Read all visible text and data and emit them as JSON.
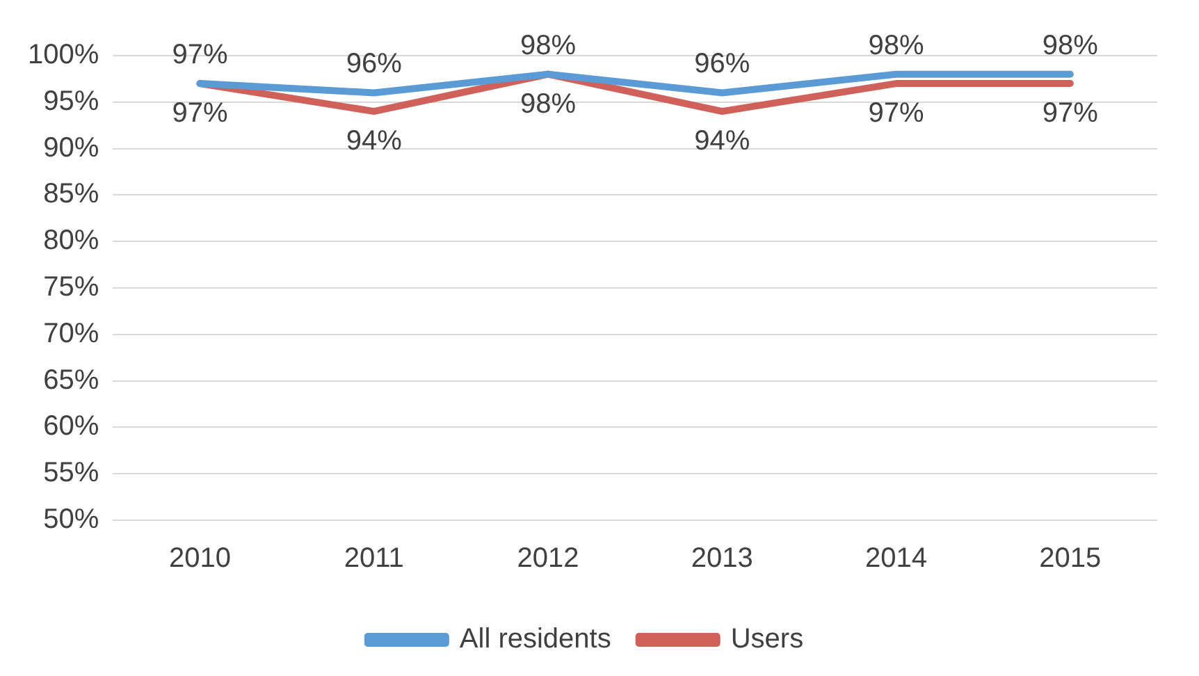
{
  "chart_data": {
    "type": "line",
    "categories": [
      "2010",
      "2011",
      "2012",
      "2013",
      "2014",
      "2015"
    ],
    "series": [
      {
        "name": "All residents",
        "color": "#5b9bd5",
        "values": [
          97,
          96,
          98,
          96,
          98,
          98
        ],
        "value_labels": [
          "97%",
          "96%",
          "98%",
          "96%",
          "98%",
          "98%"
        ]
      },
      {
        "name": "Users",
        "color": "#d0605a",
        "values": [
          97,
          94,
          98,
          94,
          97,
          97
        ],
        "value_labels": [
          "97%",
          "94%",
          "98%",
          "94%",
          "97%",
          "97%"
        ]
      }
    ],
    "ylim": [
      50,
      100
    ],
    "yticks": [
      {
        "value": 50,
        "label": "50%"
      },
      {
        "value": 55,
        "label": "55%"
      },
      {
        "value": 60,
        "label": "60%"
      },
      {
        "value": 65,
        "label": "65%"
      },
      {
        "value": 70,
        "label": "70%"
      },
      {
        "value": 75,
        "label": "75%"
      },
      {
        "value": 80,
        "label": "80%"
      },
      {
        "value": 85,
        "label": "85%"
      },
      {
        "value": 90,
        "label": "90%"
      },
      {
        "value": 95,
        "label": "95%"
      },
      {
        "value": 100,
        "label": "100%"
      }
    ],
    "grid": "y",
    "legend": "bottom",
    "marker": "none",
    "line_style": "solid"
  }
}
